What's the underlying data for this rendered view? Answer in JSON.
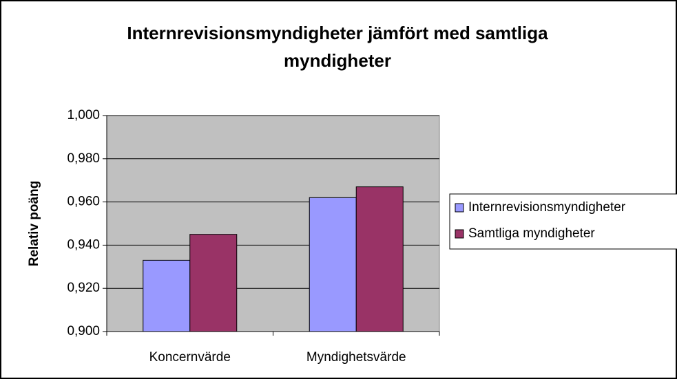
{
  "chart_data": {
    "type": "bar",
    "title": "Internrevisionsmyndigheter jämfört med samtliga myndigheter",
    "y_label": "Relativ poäng",
    "categories": [
      "Koncernvärde",
      "Myndighetsvärde"
    ],
    "series": [
      {
        "name": "Internrevisionsmyndigheter",
        "color": "#9999ff",
        "values": [
          0.933,
          0.962
        ]
      },
      {
        "name": "Samtliga myndigheter",
        "color": "#993366",
        "values": [
          0.945,
          0.967
        ]
      }
    ],
    "ylim": [
      0.9,
      1.0
    ],
    "yticks": [
      {
        "value": 0.9,
        "label": "0,900"
      },
      {
        "value": 0.92,
        "label": "0,920"
      },
      {
        "value": 0.94,
        "label": "0,940"
      },
      {
        "value": 0.96,
        "label": "0,960"
      },
      {
        "value": 0.98,
        "label": "0,980"
      },
      {
        "value": 1.0,
        "label": "1,000"
      }
    ],
    "grid": true
  }
}
